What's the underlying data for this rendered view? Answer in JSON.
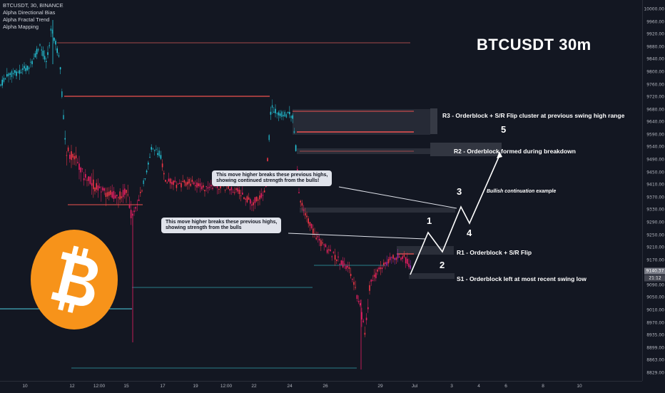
{
  "header": {
    "symbol_line": "BTCUSDT, 30, BINANCE",
    "indicators": [
      "Alpha Directional Bias",
      "Alpha Fractal Trend",
      "Alpha Mapping"
    ]
  },
  "title": "BTCUSDT 30m",
  "zones": {
    "r3_label": "R3 - Orderblock + S/R Flip cluster at previous swing high range",
    "r2_label": "R2 - Orderblock formed during breakdown",
    "r1_label": "R1 - Orderblock + S/R Flip",
    "s1_label": "S1 - Orderblock left at most recent swing low"
  },
  "waves": [
    "1",
    "2",
    "3",
    "4",
    "5"
  ],
  "callouts": {
    "upper_line1": "This move higher breaks these previous highs,",
    "upper_line2": "showing continued strength from the bulls!",
    "lower_line1": "This move higher breaks these previous highs,",
    "lower_line2": "showing strength from the bulls"
  },
  "bullish_note": "Bullish continuation example",
  "price_axis": {
    "ticks": [
      "10000.00",
      "9960.00",
      "9920.00",
      "9880.00",
      "9840.00",
      "9800.00",
      "9760.00",
      "9720.00",
      "9680.00",
      "9640.00",
      "9590.00",
      "9540.00",
      "9490.00",
      "9450.00",
      "9410.00",
      "9370.00",
      "9330.00",
      "9290.00",
      "9250.00",
      "9210.00",
      "9170.00",
      "9130.00",
      "9090.00",
      "9050.00",
      "9010.00",
      "8970.00",
      "8935.00",
      "8899.00",
      "8863.00",
      "8829.00"
    ],
    "last_price": "9140.37",
    "countdown": "21:12"
  },
  "time_axis": {
    "ticks": [
      "10",
      "12",
      "12:00",
      "15",
      "17",
      "19",
      "12:00",
      "22",
      "24",
      "26",
      "29",
      "Jul",
      "3",
      "4",
      "6",
      "8",
      "10"
    ]
  },
  "colors": {
    "background": "#131722",
    "candle_red": "#f23645",
    "candle_pink": "#e91e63",
    "candle_teal": "#26c6da",
    "level_red": "#ef5350",
    "level_teal": "#4dd0e1",
    "logo_orange": "#f7931a"
  },
  "logo_icon": "bitcoin-logo-icon"
}
